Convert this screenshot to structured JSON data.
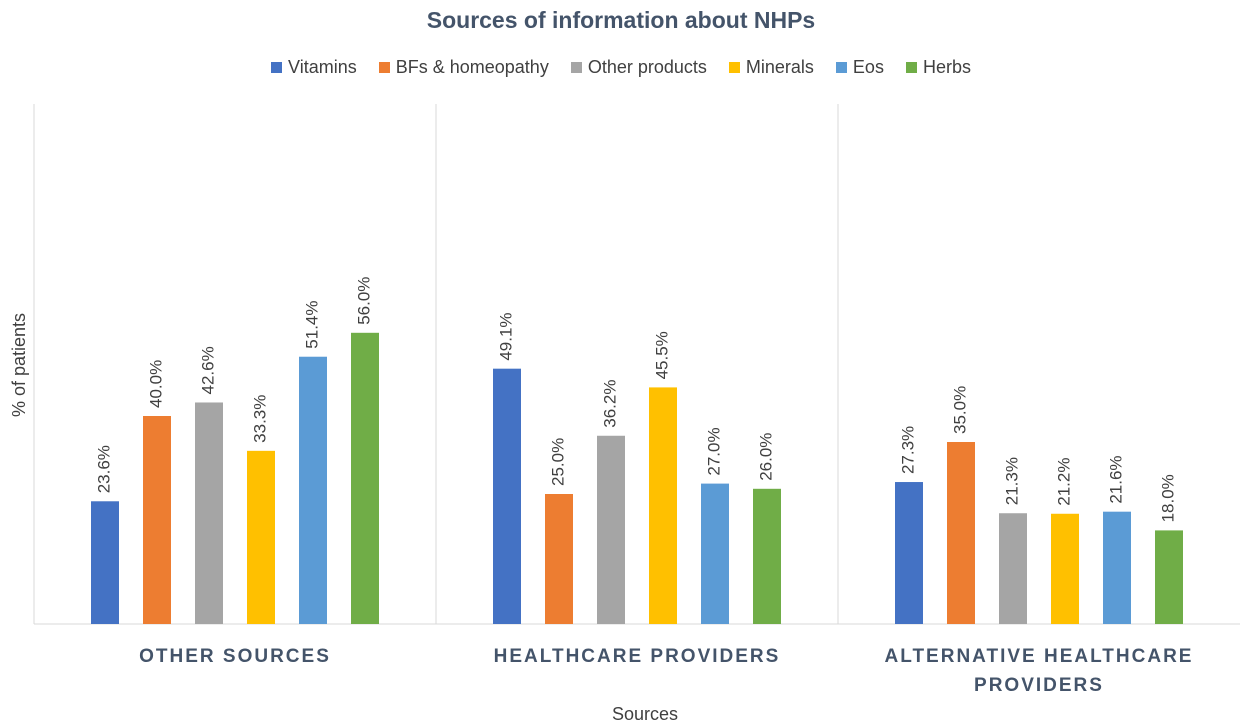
{
  "chart_data": {
    "type": "bar",
    "title": "Sources of information about NHPs",
    "x_label": "Sources",
    "y_label": "% of patients",
    "categories": [
      "OTHER SOURCES",
      "HEALTHCARE PROVIDERS",
      "ALTERNATIVE HEALTHCARE PROVIDERS"
    ],
    "ylim": [
      0,
      100
    ],
    "series": [
      {
        "name": "Vitamins",
        "color": "#4472c4",
        "values": [
          23.6,
          49.1,
          27.3
        ],
        "value_labels": [
          "23.6%",
          "49.1%",
          "27.3%"
        ]
      },
      {
        "name": "BFs & homeopathy",
        "color": "#ed7d31",
        "values": [
          40.0,
          25.0,
          35.0
        ],
        "value_labels": [
          "40.0%",
          "25.0%",
          "35.0%"
        ]
      },
      {
        "name": "Other products",
        "color": "#a5a5a5",
        "values": [
          42.6,
          36.2,
          21.3
        ],
        "value_labels": [
          "42.6%",
          "36.2%",
          "21.3%"
        ]
      },
      {
        "name": "Minerals",
        "color": "#ffc000",
        "values": [
          33.3,
          45.5,
          21.2
        ],
        "value_labels": [
          "33.3%",
          "45.5%",
          "21.2%"
        ]
      },
      {
        "name": "Eos",
        "color": "#5b9bd5",
        "values": [
          51.4,
          27.0,
          21.6
        ],
        "value_labels": [
          "51.4%",
          "27.0%",
          "21.6%"
        ]
      },
      {
        "name": "Herbs",
        "color": "#70ad47",
        "values": [
          56.0,
          26.0,
          18.0
        ],
        "value_labels": [
          "56.0%",
          "26.0%",
          "18.0%"
        ]
      }
    ]
  }
}
